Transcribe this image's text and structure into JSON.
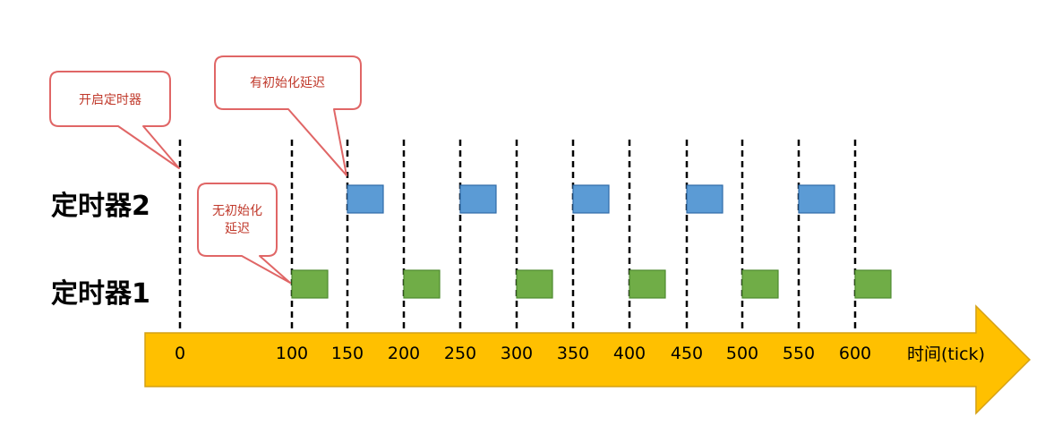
{
  "colors": {
    "arrow_fill": "#FFC000",
    "arrow_stroke": "#D4A017",
    "timer2_block": "#5B9BD5",
    "timer2_block_stroke": "#2E6AA8",
    "timer1_block": "#70AD47",
    "timer1_block_stroke": "#4E8A2E",
    "callout_fill": "#FFFFFF",
    "callout_stroke": "#E06666",
    "callout_text": "#C0392B",
    "dashed_line": "#000000"
  },
  "diagram": {
    "row_labels": {
      "timer2": "定时器2",
      "timer1": "定时器1"
    },
    "axis": {
      "label": "时间(tick)",
      "ticks": [
        "0",
        "100",
        "150",
        "200",
        "250",
        "300",
        "350",
        "400",
        "450",
        "500",
        "550",
        "600"
      ]
    },
    "callouts": {
      "start": "开启定时器",
      "with_delay": "有初始化延迟",
      "no_delay_line1": "无初始化",
      "no_delay_line2": "延迟"
    },
    "timer2_starts": [
      "150",
      "250",
      "350",
      "450",
      "550"
    ],
    "timer1_starts": [
      "100",
      "200",
      "300",
      "400",
      "500",
      "600"
    ]
  }
}
